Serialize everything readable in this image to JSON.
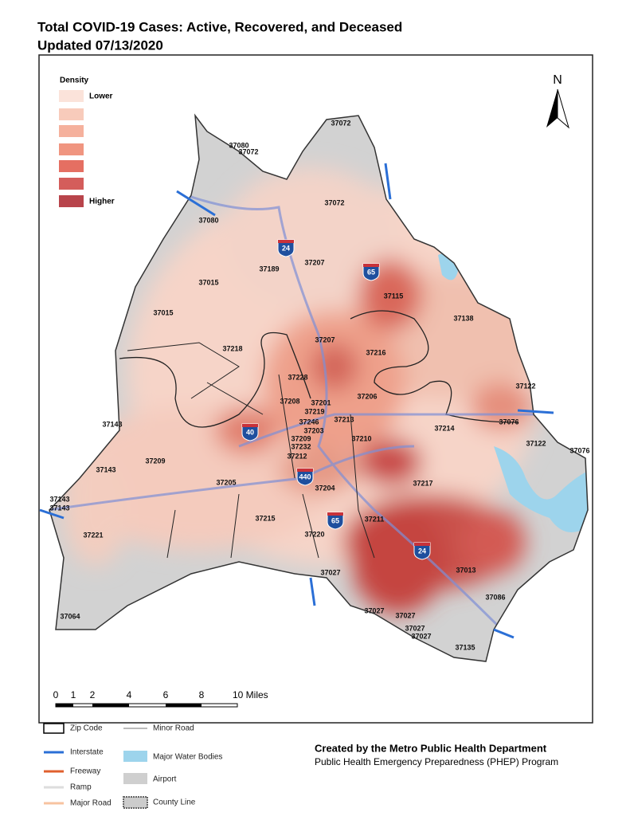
{
  "title": [
    "Total COVID-19 Cases: Active, Recovered, and Deceased",
    "Updated 07/13/2020"
  ],
  "north": "N",
  "density_legend": {
    "title": "Density",
    "low": "Lower",
    "high": "Higher"
  },
  "zip_labels": [
    "37072",
    "37080",
    "37072",
    "37072",
    "37080",
    "37207",
    "37189",
    "37015",
    "37115",
    "37015",
    "37138",
    "37207",
    "37218",
    "37216",
    "37228",
    "37206",
    "37122",
    "37208",
    "37201",
    "37219",
    "37213",
    "37246",
    "37203",
    "37214",
    "37076",
    "37143",
    "37210",
    "37209",
    "37232",
    "37212",
    "37122",
    "37076",
    "37209",
    "37143",
    "37205",
    "37217",
    "37204",
    "37143",
    "37143",
    "37211",
    "37215",
    "37220",
    "37221",
    "37013",
    "37027",
    "37086",
    "37027",
    "37027",
    "37027",
    "37027",
    "37064",
    "37135"
  ],
  "shields": [
    "24",
    "65",
    "40",
    "440",
    "65",
    "24"
  ],
  "scale_bar": [
    "0",
    "1",
    "2",
    "4",
    "6",
    "8",
    "10 Miles"
  ],
  "legend": [
    "Zip Code",
    "Minor Road",
    "Interstate",
    "Major Water Bodies",
    "Freeway",
    "Airport",
    "Ramp",
    "Major Road",
    "County Line"
  ],
  "credits": {
    "line1": "Created by the Metro Public Health Department",
    "line2": "Public Health Emergency Preparedness (PHEP) Program"
  }
}
